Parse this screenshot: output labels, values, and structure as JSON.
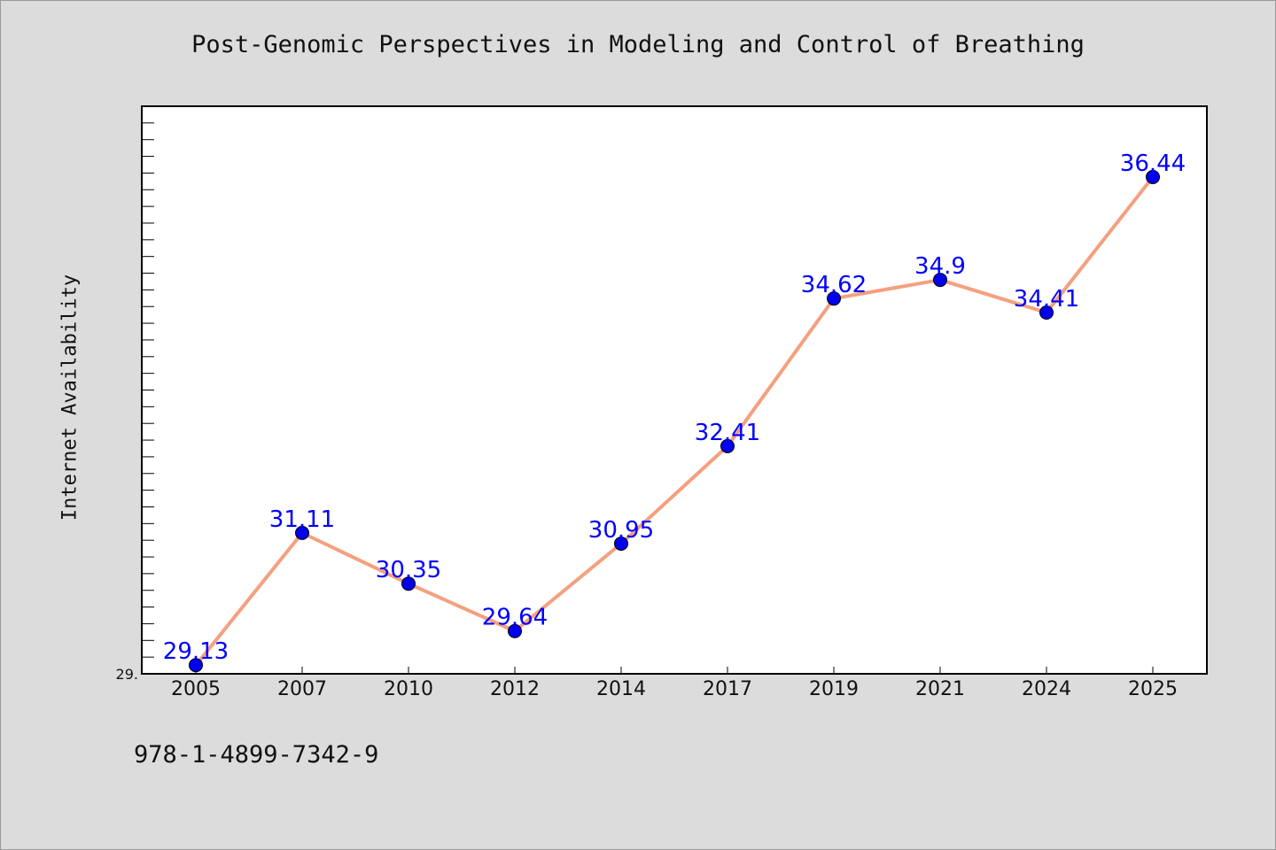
{
  "chart_data": {
    "type": "line",
    "title": "Post-Genomic Perspectives in Modeling and Control of Breathing",
    "xlabel": "",
    "ylabel": "Internet Availability",
    "categories": [
      "2005",
      "2007",
      "2010",
      "2012",
      "2014",
      "2017",
      "2019",
      "2021",
      "2024",
      "2025"
    ],
    "values": [
      29.13,
      31.11,
      30.35,
      29.64,
      30.95,
      32.41,
      34.62,
      34.9,
      34.41,
      36.44
    ],
    "data_labels": [
      "29.13",
      "31.11",
      "30.35",
      "29.64",
      "30.95",
      "32.41",
      "34.62",
      "34.9",
      "34.41",
      "36.44"
    ],
    "ylim": [
      29.0,
      37.5
    ],
    "y_tick_labels": [
      "29."
    ],
    "grid": false,
    "legend": "none",
    "line_color": "#f4a07f",
    "marker_color": "#0000ee",
    "label_color": "#0000ff"
  },
  "footer": {
    "code": "978-1-4899-7342-9"
  }
}
